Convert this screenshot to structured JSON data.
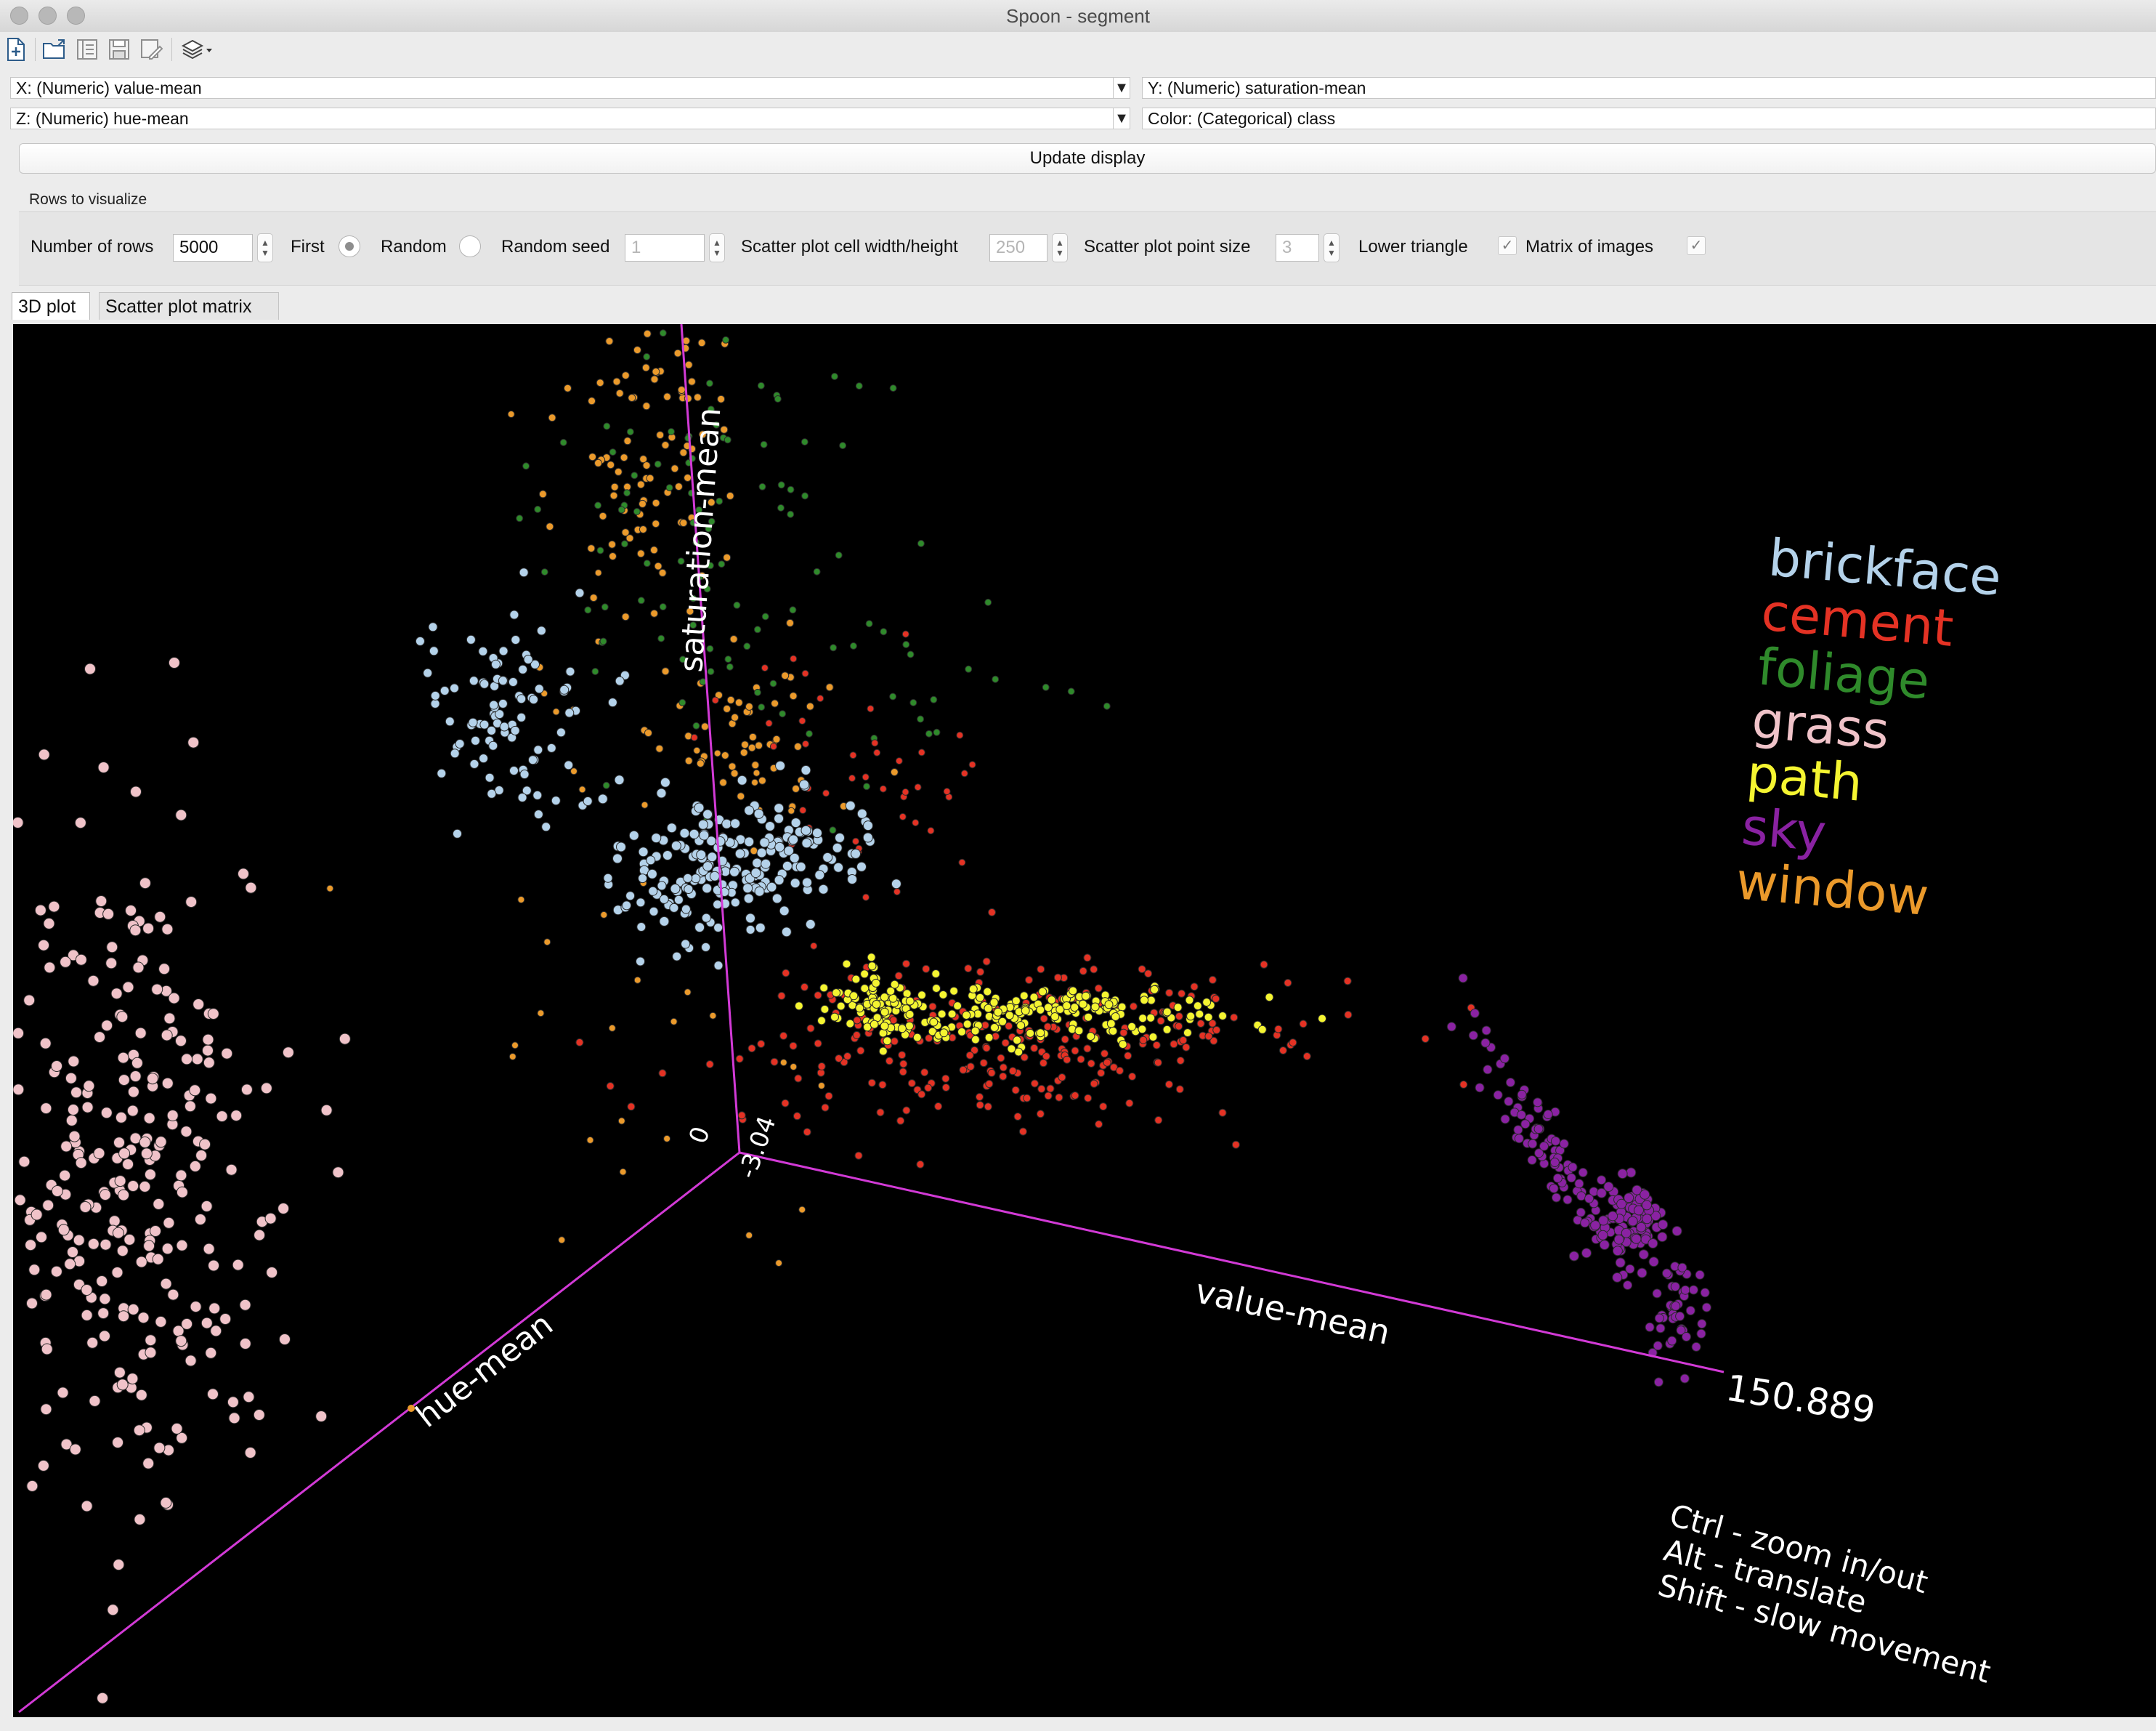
{
  "window": {
    "title": "Spoon - segment"
  },
  "toolbar": {
    "icons": [
      "new-file-icon",
      "open-folder-icon",
      "explore-repository-icon",
      "save-icon",
      "save-as-icon",
      "perspective-layers-icon"
    ]
  },
  "selectors": {
    "x": "X: (Numeric) value-mean",
    "y": "Y: (Numeric) saturation-mean",
    "z": "Z: (Numeric) hue-mean",
    "color": "Color: (Categorical) class"
  },
  "update_button": "Update display",
  "rows_panel": {
    "title": "Rows to visualize",
    "number_of_rows_label": "Number of rows",
    "number_of_rows_value": "5000",
    "first_label": "First",
    "first_selected": true,
    "random_label": "Random",
    "random_seed_label": "Random seed",
    "random_seed_value": "1",
    "cell_size_label": "Scatter plot cell width/height",
    "cell_size_value": "250",
    "point_size_label": "Scatter plot point size",
    "point_size_value": "3",
    "lower_triangle_label": "Lower triangle",
    "lower_triangle_checked": true,
    "matrix_images_label": "Matrix of images",
    "matrix_images_checked": true
  },
  "tabs": [
    "3D plot",
    "Scatter plot matrix"
  ],
  "chart_data": {
    "type": "scatter",
    "title": "",
    "x_axis": {
      "label": "value-mean",
      "tick_labels": [
        "150.889"
      ]
    },
    "y_axis": {
      "label": "saturation-mean",
      "tick_labels": [
        "0"
      ]
    },
    "z_axis": {
      "label": "hue-mean",
      "tick_labels": [
        "-3.04"
      ]
    },
    "legend": {
      "placement": "top-right",
      "entries": [
        {
          "name": "brickface",
          "color": "#b4d2ea"
        },
        {
          "name": "cement",
          "color": "#e43224"
        },
        {
          "name": "foliage",
          "color": "#2f8a2b"
        },
        {
          "name": "grass",
          "color": "#f0c3c9"
        },
        {
          "name": "path",
          "color": "#f5f531"
        },
        {
          "name": "sky",
          "color": "#8a22a2"
        },
        {
          "name": "window",
          "color": "#eb9a2b"
        }
      ]
    },
    "axis_color": "#d23ad6",
    "background": "#000000"
  },
  "help_text": [
    "Ctrl - zoom in/out",
    "Alt - translate",
    "Shift - slow movement"
  ]
}
